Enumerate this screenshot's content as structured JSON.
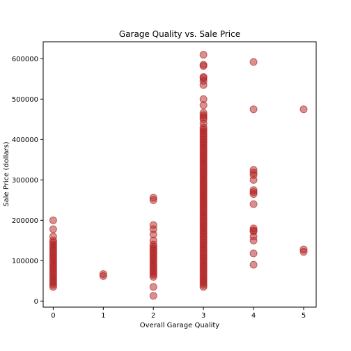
{
  "chart_data": {
    "type": "scatter",
    "title": "Garage Quality vs. Sale Price",
    "xlabel": "Overall Garage Quality",
    "ylabel": "Sale Price (dollars)",
    "xlim": [
      -0.2,
      5.25
    ],
    "ylim": [
      -15000,
      642000
    ],
    "x_ticks": [
      0,
      1,
      2,
      3,
      4,
      5
    ],
    "y_ticks": [
      0,
      100000,
      200000,
      300000,
      400000,
      500000,
      600000
    ],
    "x_tick_labels": [
      "0",
      "1",
      "2",
      "3",
      "4",
      "5"
    ],
    "y_tick_labels": [
      "0",
      "100000",
      "200000",
      "300000",
      "400000",
      "500000",
      "600000"
    ],
    "grid": false,
    "colors": {
      "marker_fill": "#b22222",
      "marker_edge": "#b22222",
      "marker_alpha": 0.5
    },
    "series": [
      {
        "points": [
          {
            "x": 0,
            "y": 35000
          },
          {
            "x": 0,
            "y": 40000
          },
          {
            "x": 0,
            "y": 45000
          },
          {
            "x": 0,
            "y": 50000
          },
          {
            "x": 0,
            "y": 55000
          },
          {
            "x": 0,
            "y": 60000
          },
          {
            "x": 0,
            "y": 65000
          },
          {
            "x": 0,
            "y": 70000
          },
          {
            "x": 0,
            "y": 75000
          },
          {
            "x": 0,
            "y": 80000
          },
          {
            "x": 0,
            "y": 85000
          },
          {
            "x": 0,
            "y": 90000
          },
          {
            "x": 0,
            "y": 95000
          },
          {
            "x": 0,
            "y": 100000
          },
          {
            "x": 0,
            "y": 105000
          },
          {
            "x": 0,
            "y": 110000
          },
          {
            "x": 0,
            "y": 115000
          },
          {
            "x": 0,
            "y": 120000
          },
          {
            "x": 0,
            "y": 125000
          },
          {
            "x": 0,
            "y": 130000
          },
          {
            "x": 0,
            "y": 135000
          },
          {
            "x": 0,
            "y": 140000
          },
          {
            "x": 0,
            "y": 145000
          },
          {
            "x": 0,
            "y": 150000
          },
          {
            "x": 0,
            "y": 160000
          },
          {
            "x": 0,
            "y": 178000
          },
          {
            "x": 0,
            "y": 200000
          },
          {
            "x": 1,
            "y": 62000
          },
          {
            "x": 1,
            "y": 67000
          },
          {
            "x": 2,
            "y": 13000
          },
          {
            "x": 2,
            "y": 35000
          },
          {
            "x": 2,
            "y": 60000
          },
          {
            "x": 2,
            "y": 65000
          },
          {
            "x": 2,
            "y": 70000
          },
          {
            "x": 2,
            "y": 75000
          },
          {
            "x": 2,
            "y": 80000
          },
          {
            "x": 2,
            "y": 85000
          },
          {
            "x": 2,
            "y": 90000
          },
          {
            "x": 2,
            "y": 95000
          },
          {
            "x": 2,
            "y": 100000
          },
          {
            "x": 2,
            "y": 105000
          },
          {
            "x": 2,
            "y": 110000
          },
          {
            "x": 2,
            "y": 115000
          },
          {
            "x": 2,
            "y": 120000
          },
          {
            "x": 2,
            "y": 125000
          },
          {
            "x": 2,
            "y": 130000
          },
          {
            "x": 2,
            "y": 135000
          },
          {
            "x": 2,
            "y": 140000
          },
          {
            "x": 2,
            "y": 150000
          },
          {
            "x": 2,
            "y": 165000
          },
          {
            "x": 2,
            "y": 178000
          },
          {
            "x": 2,
            "y": 188000
          },
          {
            "x": 2,
            "y": 250000
          },
          {
            "x": 2,
            "y": 256000
          },
          {
            "x": 3,
            "y": 35000
          },
          {
            "x": 3,
            "y": 40000
          },
          {
            "x": 3,
            "y": 45000
          },
          {
            "x": 3,
            "y": 50000
          },
          {
            "x": 3,
            "y": 55000
          },
          {
            "x": 3,
            "y": 60000
          },
          {
            "x": 3,
            "y": 65000
          },
          {
            "x": 3,
            "y": 70000
          },
          {
            "x": 3,
            "y": 75000
          },
          {
            "x": 3,
            "y": 80000
          },
          {
            "x": 3,
            "y": 85000
          },
          {
            "x": 3,
            "y": 90000
          },
          {
            "x": 3,
            "y": 95000
          },
          {
            "x": 3,
            "y": 100000
          },
          {
            "x": 3,
            "y": 105000
          },
          {
            "x": 3,
            "y": 110000
          },
          {
            "x": 3,
            "y": 115000
          },
          {
            "x": 3,
            "y": 120000
          },
          {
            "x": 3,
            "y": 125000
          },
          {
            "x": 3,
            "y": 130000
          },
          {
            "x": 3,
            "y": 135000
          },
          {
            "x": 3,
            "y": 140000
          },
          {
            "x": 3,
            "y": 145000
          },
          {
            "x": 3,
            "y": 150000
          },
          {
            "x": 3,
            "y": 155000
          },
          {
            "x": 3,
            "y": 160000
          },
          {
            "x": 3,
            "y": 165000
          },
          {
            "x": 3,
            "y": 170000
          },
          {
            "x": 3,
            "y": 175000
          },
          {
            "x": 3,
            "y": 180000
          },
          {
            "x": 3,
            "y": 185000
          },
          {
            "x": 3,
            "y": 190000
          },
          {
            "x": 3,
            "y": 195000
          },
          {
            "x": 3,
            "y": 200000
          },
          {
            "x": 3,
            "y": 205000
          },
          {
            "x": 3,
            "y": 210000
          },
          {
            "x": 3,
            "y": 215000
          },
          {
            "x": 3,
            "y": 220000
          },
          {
            "x": 3,
            "y": 225000
          },
          {
            "x": 3,
            "y": 230000
          },
          {
            "x": 3,
            "y": 235000
          },
          {
            "x": 3,
            "y": 240000
          },
          {
            "x": 3,
            "y": 245000
          },
          {
            "x": 3,
            "y": 250000
          },
          {
            "x": 3,
            "y": 255000
          },
          {
            "x": 3,
            "y": 260000
          },
          {
            "x": 3,
            "y": 265000
          },
          {
            "x": 3,
            "y": 270000
          },
          {
            "x": 3,
            "y": 275000
          },
          {
            "x": 3,
            "y": 280000
          },
          {
            "x": 3,
            "y": 285000
          },
          {
            "x": 3,
            "y": 290000
          },
          {
            "x": 3,
            "y": 295000
          },
          {
            "x": 3,
            "y": 300000
          },
          {
            "x": 3,
            "y": 305000
          },
          {
            "x": 3,
            "y": 310000
          },
          {
            "x": 3,
            "y": 315000
          },
          {
            "x": 3,
            "y": 320000
          },
          {
            "x": 3,
            "y": 325000
          },
          {
            "x": 3,
            "y": 330000
          },
          {
            "x": 3,
            "y": 335000
          },
          {
            "x": 3,
            "y": 340000
          },
          {
            "x": 3,
            "y": 345000
          },
          {
            "x": 3,
            "y": 350000
          },
          {
            "x": 3,
            "y": 355000
          },
          {
            "x": 3,
            "y": 360000
          },
          {
            "x": 3,
            "y": 365000
          },
          {
            "x": 3,
            "y": 370000
          },
          {
            "x": 3,
            "y": 375000
          },
          {
            "x": 3,
            "y": 380000
          },
          {
            "x": 3,
            "y": 385000
          },
          {
            "x": 3,
            "y": 390000
          },
          {
            "x": 3,
            "y": 395000
          },
          {
            "x": 3,
            "y": 400000
          },
          {
            "x": 3,
            "y": 405000
          },
          {
            "x": 3,
            "y": 410000
          },
          {
            "x": 3,
            "y": 415000
          },
          {
            "x": 3,
            "y": 420000
          },
          {
            "x": 3,
            "y": 425000
          },
          {
            "x": 3,
            "y": 430000
          },
          {
            "x": 3,
            "y": 440000
          },
          {
            "x": 3,
            "y": 450000
          },
          {
            "x": 3,
            "y": 455000
          },
          {
            "x": 3,
            "y": 460000
          },
          {
            "x": 3,
            "y": 466000
          },
          {
            "x": 3,
            "y": 485000
          },
          {
            "x": 3,
            "y": 500000
          },
          {
            "x": 3,
            "y": 535000
          },
          {
            "x": 3,
            "y": 545000
          },
          {
            "x": 3,
            "y": 552000
          },
          {
            "x": 3,
            "y": 555000
          },
          {
            "x": 3,
            "y": 582000
          },
          {
            "x": 3,
            "y": 585000
          },
          {
            "x": 3,
            "y": 610000
          },
          {
            "x": 4,
            "y": 90000
          },
          {
            "x": 4,
            "y": 118000
          },
          {
            "x": 4,
            "y": 150000
          },
          {
            "x": 4,
            "y": 160000
          },
          {
            "x": 4,
            "y": 172000
          },
          {
            "x": 4,
            "y": 175000
          },
          {
            "x": 4,
            "y": 180000
          },
          {
            "x": 4,
            "y": 240000
          },
          {
            "x": 4,
            "y": 265000
          },
          {
            "x": 4,
            "y": 270000
          },
          {
            "x": 4,
            "y": 275000
          },
          {
            "x": 4,
            "y": 300000
          },
          {
            "x": 4,
            "y": 312000
          },
          {
            "x": 4,
            "y": 318000
          },
          {
            "x": 4,
            "y": 325000
          },
          {
            "x": 4,
            "y": 475000
          },
          {
            "x": 4,
            "y": 592000
          },
          {
            "x": 5,
            "y": 122000
          },
          {
            "x": 5,
            "y": 128000
          },
          {
            "x": 5,
            "y": 475000
          }
        ]
      }
    ]
  }
}
